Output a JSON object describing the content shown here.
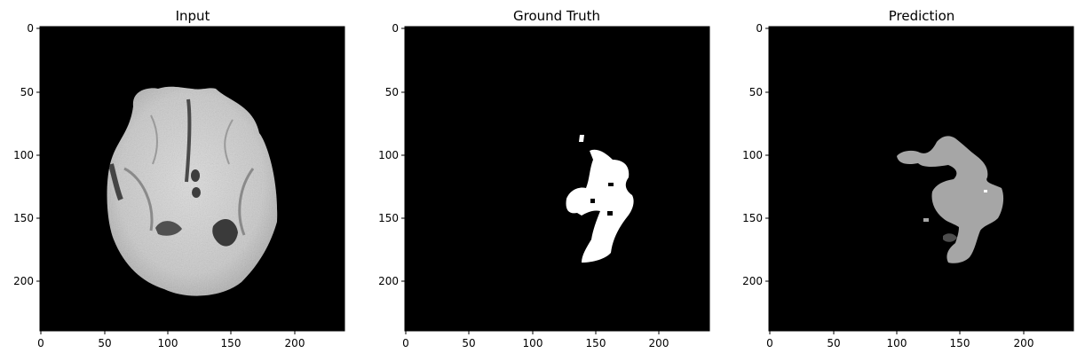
{
  "figure": {
    "panels": [
      {
        "title": "Input",
        "kind": "mri-slice",
        "xticks": [
          "0",
          "50",
          "100",
          "150",
          "200"
        ],
        "yticks": [
          "0",
          "50",
          "100",
          "150",
          "200"
        ]
      },
      {
        "title": "Ground Truth",
        "kind": "binary-mask",
        "mask_color": "#ffffff",
        "xticks": [
          "0",
          "50",
          "100",
          "150",
          "200"
        ],
        "yticks": [
          "0",
          "50",
          "100",
          "150",
          "200"
        ]
      },
      {
        "title": "Prediction",
        "kind": "label-mask",
        "mask_color": "#a6a6a6",
        "secondary_color": "#4d4d4d",
        "xticks": [
          "0",
          "50",
          "100",
          "150",
          "200"
        ],
        "yticks": [
          "0",
          "50",
          "100",
          "150",
          "200"
        ]
      }
    ]
  }
}
